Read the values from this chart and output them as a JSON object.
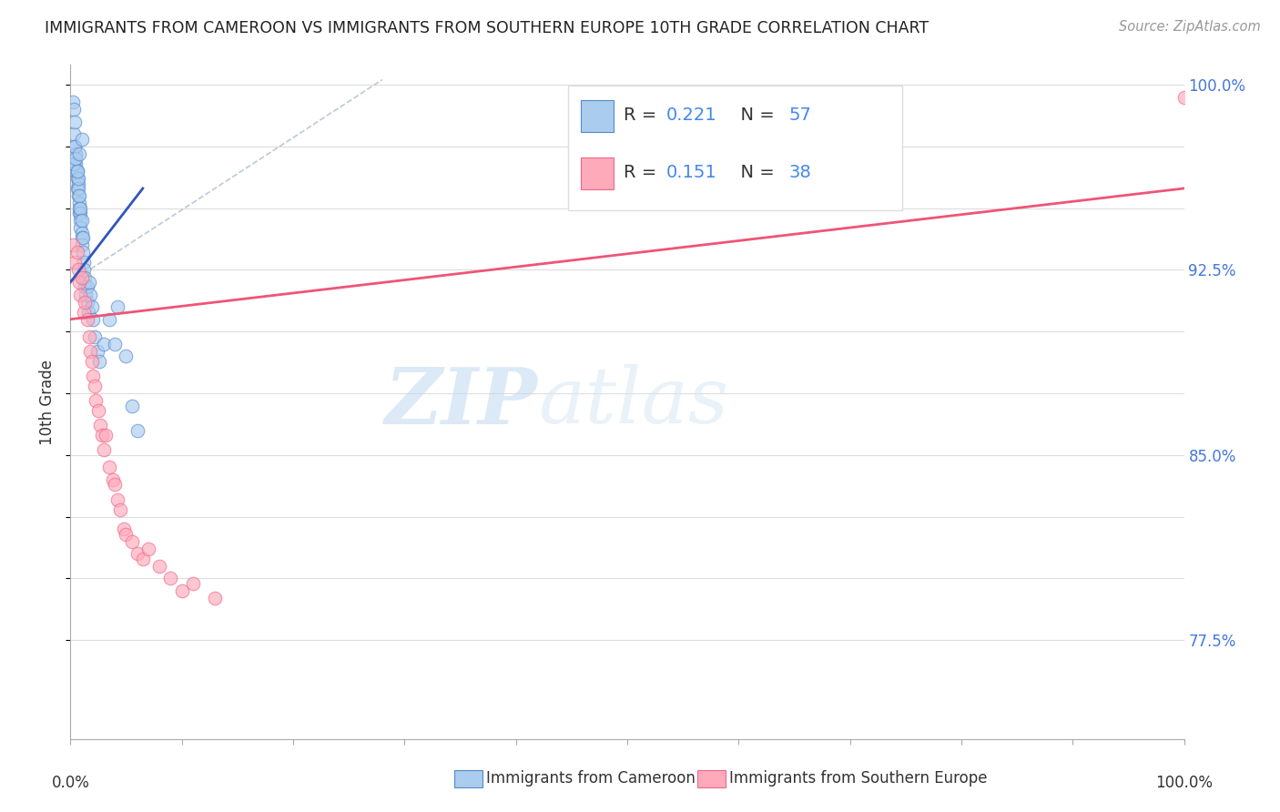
{
  "title": "IMMIGRANTS FROM CAMEROON VS IMMIGRANTS FROM SOUTHERN EUROPE 10TH GRADE CORRELATION CHART",
  "source_text": "Source: ZipAtlas.com",
  "ylabel": "10th Grade",
  "xlim": [
    0.0,
    1.0
  ],
  "ylim": [
    0.735,
    1.008
  ],
  "background_color": "#ffffff",
  "blue_color": "#aaccee",
  "pink_color": "#ffaabb",
  "blue_edge_color": "#5588cc",
  "pink_edge_color": "#ee6688",
  "blue_line_color": "#3355bb",
  "pink_line_color": "#ee5577",
  "grid_color": "#dddddd",
  "legend_R1": "0.221",
  "legend_N1": "57",
  "legend_R2": "0.151",
  "legend_N2": "38",
  "legend_label1": "Immigrants from Cameroon",
  "legend_label2": "Immigrants from Southern Europe",
  "watermark_zip": "ZIP",
  "watermark_atlas": "atlas",
  "ytick_positions": [
    0.775,
    0.8,
    0.825,
    0.85,
    0.875,
    0.9,
    0.925,
    0.95,
    0.975,
    1.0
  ],
  "ytick_right_labels": {
    "0.775": "77.5%",
    "0.85": "85.0%",
    "0.925": "92.5%",
    "1.0": "100.0%"
  },
  "blue_scatter_x": [
    0.002,
    0.003,
    0.003,
    0.004,
    0.004,
    0.005,
    0.005,
    0.005,
    0.006,
    0.006,
    0.006,
    0.007,
    0.007,
    0.007,
    0.007,
    0.008,
    0.008,
    0.008,
    0.008,
    0.009,
    0.009,
    0.009,
    0.009,
    0.01,
    0.01,
    0.01,
    0.01,
    0.011,
    0.011,
    0.012,
    0.012,
    0.013,
    0.013,
    0.014,
    0.015,
    0.015,
    0.016,
    0.017,
    0.018,
    0.019,
    0.02,
    0.022,
    0.024,
    0.026,
    0.03,
    0.035,
    0.04,
    0.042,
    0.05,
    0.055,
    0.06,
    0.003,
    0.004,
    0.005,
    0.006,
    0.008,
    0.01
  ],
  "blue_scatter_y": [
    0.993,
    0.99,
    0.98,
    0.985,
    0.975,
    0.972,
    0.968,
    0.965,
    0.962,
    0.958,
    0.965,
    0.96,
    0.955,
    0.958,
    0.962,
    0.952,
    0.948,
    0.955,
    0.95,
    0.948,
    0.945,
    0.95,
    0.942,
    0.94,
    0.945,
    0.938,
    0.935,
    0.932,
    0.938,
    0.928,
    0.925,
    0.922,
    0.918,
    0.915,
    0.912,
    0.918,
    0.908,
    0.92,
    0.915,
    0.91,
    0.905,
    0.898,
    0.892,
    0.888,
    0.895,
    0.905,
    0.895,
    0.91,
    0.89,
    0.87,
    0.86,
    0.968,
    0.975,
    0.97,
    0.965,
    0.972,
    0.978
  ],
  "pink_scatter_x": [
    0.002,
    0.004,
    0.006,
    0.007,
    0.008,
    0.009,
    0.01,
    0.012,
    0.013,
    0.015,
    0.017,
    0.018,
    0.019,
    0.02,
    0.022,
    0.023,
    0.025,
    0.027,
    0.028,
    0.03,
    0.032,
    0.035,
    0.038,
    0.04,
    0.042,
    0.045,
    0.048,
    0.05,
    0.055,
    0.06,
    0.065,
    0.07,
    0.08,
    0.09,
    0.1,
    0.11,
    0.13,
    1.0
  ],
  "pink_scatter_y": [
    0.935,
    0.928,
    0.932,
    0.925,
    0.92,
    0.915,
    0.922,
    0.908,
    0.912,
    0.905,
    0.898,
    0.892,
    0.888,
    0.882,
    0.878,
    0.872,
    0.868,
    0.862,
    0.858,
    0.852,
    0.858,
    0.845,
    0.84,
    0.838,
    0.832,
    0.828,
    0.82,
    0.818,
    0.815,
    0.81,
    0.808,
    0.812,
    0.805,
    0.8,
    0.795,
    0.798,
    0.792,
    0.995
  ],
  "blue_line_x": [
    0.0,
    0.065
  ],
  "blue_line_y": [
    0.92,
    0.958
  ],
  "pink_line_x": [
    0.0,
    1.0
  ],
  "pink_line_y": [
    0.905,
    0.958
  ],
  "dashed_line_x": [
    0.0,
    0.28
  ],
  "dashed_line_y": [
    0.92,
    1.002
  ]
}
